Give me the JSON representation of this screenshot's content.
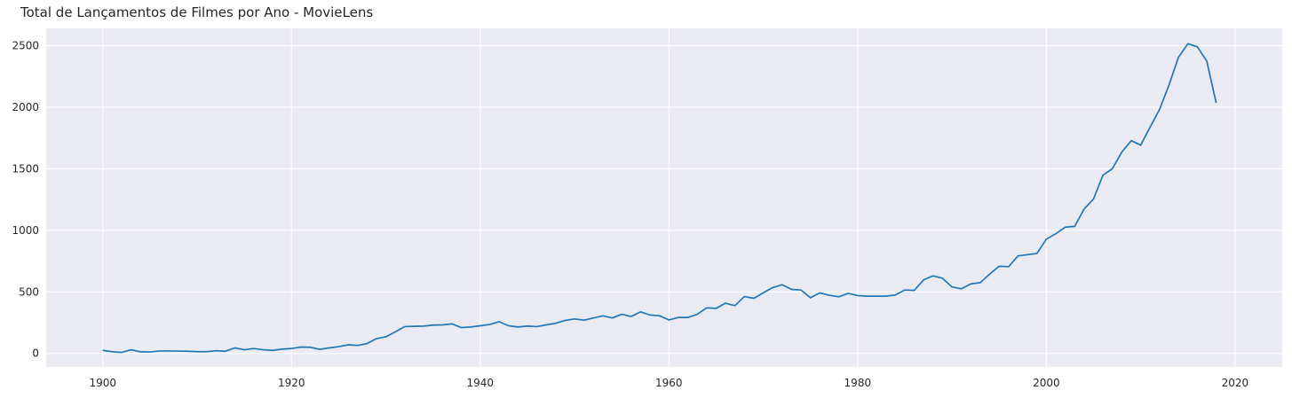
{
  "chart_data": {
    "type": "line",
    "title": "Total de Lançamentos de Filmes por Ano - MovieLens",
    "xlabel": "",
    "ylabel": "",
    "xlim": [
      1894,
      2025
    ],
    "ylim": [
      -110,
      2640
    ],
    "x_ticks": [
      "1900",
      "1920",
      "1940",
      "1960",
      "1980",
      "2000",
      "2020"
    ],
    "y_ticks": [
      "0",
      "500",
      "1000",
      "1500",
      "2000",
      "2500"
    ],
    "grid": true,
    "legend": "none",
    "line_color": "#1f77b4",
    "background_color": "#eaeaf2",
    "series": [
      {
        "x": [
          1900,
          1901,
          1902,
          1903,
          1904,
          1905,
          1906,
          1907,
          1908,
          1909,
          1910,
          1911,
          1912,
          1913,
          1914,
          1915,
          1916,
          1917,
          1918,
          1919,
          1920,
          1921,
          1922,
          1923,
          1924,
          1925,
          1926,
          1927,
          1928,
          1929,
          1930,
          1931,
          1932,
          1933,
          1934,
          1935,
          1936,
          1937,
          1938,
          1939,
          1940,
          1941,
          1942,
          1943,
          1944,
          1945,
          1946,
          1947,
          1948,
          1949,
          1950,
          1951,
          1952,
          1953,
          1954,
          1955,
          1956,
          1957,
          1958,
          1959,
          1960,
          1961,
          1962,
          1963,
          1964,
          1965,
          1966,
          1967,
          1968,
          1969,
          1970,
          1971,
          1972,
          1973,
          1974,
          1975,
          1976,
          1977,
          1978,
          1979,
          1980,
          1981,
          1982,
          1983,
          1984,
          1985,
          1986,
          1987,
          1988,
          1989,
          1990,
          1991,
          1992,
          1993,
          1994,
          1995,
          1996,
          1997,
          1998,
          1999,
          2000,
          2001,
          2002,
          2003,
          2004,
          2005,
          2006,
          2007,
          2008,
          2009,
          2010,
          2011,
          2012,
          2013,
          2014,
          2015,
          2016,
          2017,
          2018
        ],
        "values": [
          25,
          14,
          8,
          30,
          13,
          12,
          20,
          20,
          19,
          18,
          14,
          14,
          22,
          18,
          45,
          30,
          40,
          30,
          25,
          35,
          40,
          52,
          50,
          33,
          45,
          55,
          70,
          65,
          80,
          120,
          135,
          175,
          218,
          220,
          222,
          230,
          232,
          240,
          210,
          215,
          225,
          235,
          258,
          225,
          215,
          222,
          218,
          232,
          245,
          268,
          280,
          270,
          288,
          305,
          288,
          318,
          300,
          338,
          312,
          306,
          272,
          292,
          292,
          318,
          370,
          366,
          408,
          388,
          462,
          448,
          492,
          535,
          558,
          520,
          515,
          452,
          492,
          472,
          460,
          488,
          470,
          465,
          465,
          465,
          475,
          515,
          512,
          598,
          630,
          610,
          540,
          525,
          565,
          575,
          645,
          708,
          705,
          792,
          802,
          812,
          928,
          972,
          1025,
          1032,
          1172,
          1255,
          1448,
          1500,
          1635,
          1728,
          1692,
          1838,
          1982,
          2180,
          2405,
          2515,
          2490,
          2375,
          2035
        ]
      }
    ]
  }
}
